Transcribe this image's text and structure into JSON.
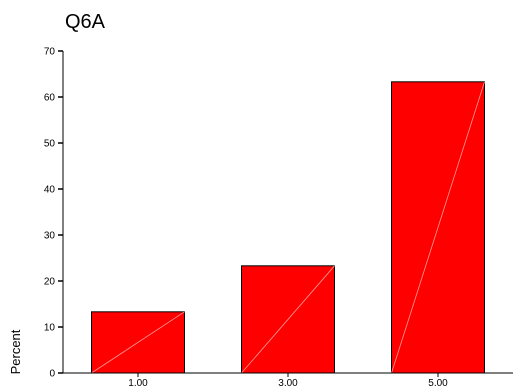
{
  "chart_data": {
    "type": "bar",
    "title": "Q6A",
    "xlabel": "",
    "ylabel": "Percent",
    "categories": [
      "1.00",
      "3.00",
      "5.00"
    ],
    "values": [
      13.3,
      23.3,
      63.3
    ],
    "ylim": [
      0,
      70
    ],
    "yticks": [
      0,
      10,
      20,
      30,
      40,
      50,
      60,
      70
    ],
    "grid": false,
    "legend": "none",
    "bar_color": "#ff0000",
    "bar_edge_color": "#000000"
  }
}
